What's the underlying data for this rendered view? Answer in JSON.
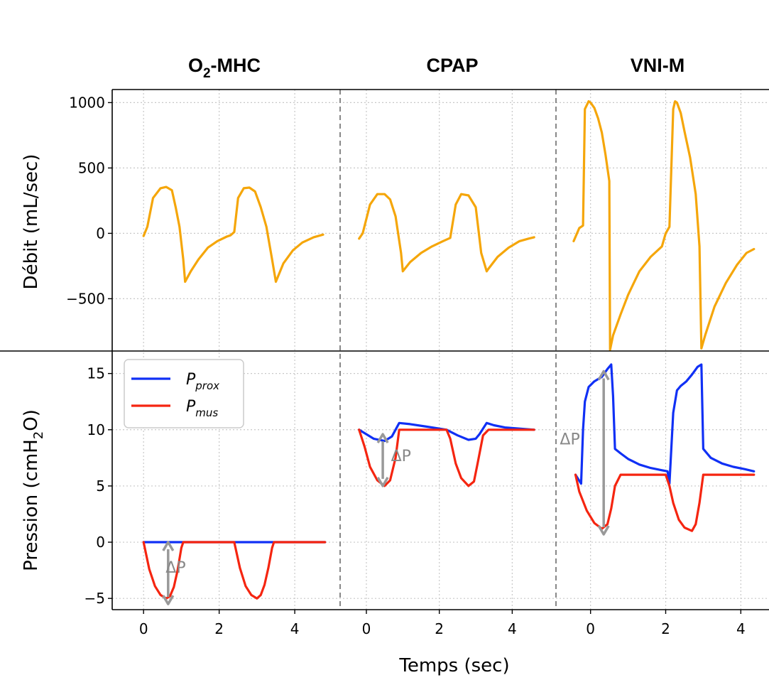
{
  "chart_data": {
    "type": "line",
    "panels": [
      {
        "title_main": "O",
        "title_sub": "2",
        "title_rest": "-MHC"
      },
      {
        "title_main": "CPAP",
        "title_sub": "",
        "title_rest": ""
      },
      {
        "title_main": "VNI-M",
        "title_sub": "",
        "title_rest": ""
      }
    ],
    "xlabel": "Temps (sec)",
    "flow": {
      "ylabel": "Débit (mL/sec)",
      "yticks": [
        -500,
        0,
        500,
        1000
      ],
      "ytick_labels": [
        "−500",
        "0",
        "500",
        "1000"
      ],
      "ylim": [
        -900,
        1100
      ],
      "color": "#F5A60A",
      "series": [
        {
          "x": [
            0.0,
            0.1,
            0.25,
            0.45,
            0.6,
            0.75,
            0.85,
            0.95,
            1.05,
            1.1,
            1.25,
            1.45,
            1.7,
            1.95,
            2.2,
            2.3,
            2.4,
            2.5,
            2.65,
            2.8,
            2.95,
            3.1,
            3.25,
            3.4,
            3.5,
            3.7,
            3.95,
            4.2,
            4.5,
            4.75
          ],
          "y": [
            -20,
            50,
            270,
            345,
            355,
            330,
            200,
            50,
            -200,
            -370,
            -290,
            -200,
            -110,
            -60,
            -25,
            -15,
            10,
            270,
            345,
            350,
            320,
            200,
            50,
            -200,
            -370,
            -230,
            -130,
            -70,
            -30,
            -10
          ]
        },
        {
          "x": [
            -0.2,
            -0.1,
            0.1,
            0.3,
            0.5,
            0.65,
            0.8,
            0.95,
            1.0,
            1.2,
            1.5,
            1.8,
            2.1,
            2.3,
            2.45,
            2.6,
            2.8,
            3.0,
            3.15,
            3.3,
            3.35,
            3.6,
            3.9,
            4.2,
            4.45,
            4.6
          ],
          "y": [
            -40,
            0,
            220,
            300,
            300,
            260,
            130,
            -150,
            -290,
            -220,
            -150,
            -100,
            -60,
            -35,
            220,
            300,
            290,
            200,
            -150,
            -290,
            -270,
            -180,
            -110,
            -60,
            -40,
            -30
          ]
        },
        {
          "x": [
            -0.45,
            -0.3,
            -0.2,
            -0.15,
            -0.05,
            0.0,
            0.1,
            0.2,
            0.3,
            0.4,
            0.5,
            0.52,
            0.6,
            0.8,
            1.0,
            1.3,
            1.6,
            1.9,
            2.0,
            2.1,
            2.2,
            2.25,
            2.3,
            2.4,
            2.5,
            2.65,
            2.8,
            2.9,
            2.95,
            3.05,
            3.3,
            3.6,
            3.9,
            4.15,
            4.35
          ],
          "y": [
            -60,
            40,
            60,
            950,
            1010,
            1000,
            960,
            880,
            770,
            600,
            400,
            -890,
            -780,
            -620,
            -470,
            -290,
            -180,
            -100,
            0,
            50,
            950,
            1010,
            1000,
            920,
            780,
            580,
            300,
            -100,
            -880,
            -780,
            -560,
            -380,
            -240,
            -150,
            -120
          ]
        }
      ]
    },
    "pressure": {
      "ylabel": "Pression (cmH₂O)",
      "ylabel_main": "Pression (cmH",
      "ylabel_sub": "2",
      "ylabel_rest": "O)",
      "yticks": [
        -5,
        0,
        5,
        10,
        15
      ],
      "ytick_labels": [
        "−5",
        "0",
        "5",
        "10",
        "15"
      ],
      "ylim": [
        -6,
        17
      ],
      "legend": [
        {
          "name_main": "P",
          "name_sub": "prox",
          "color": "#1030F5"
        },
        {
          "name_main": "P",
          "name_sub": "mus",
          "color": "#F52510"
        }
      ],
      "annotation": "ΔP",
      "panels": [
        {
          "prox": {
            "x": [
              0.0,
              4.8
            ],
            "y": [
              0,
              0
            ]
          },
          "mus": {
            "x": [
              0.0,
              0.15,
              0.3,
              0.45,
              0.6,
              0.7,
              0.8,
              0.9,
              1.0,
              1.05,
              1.2,
              2.4,
              2.55,
              2.7,
              2.85,
              3.0,
              3.1,
              3.2,
              3.3,
              3.4,
              3.45,
              4.8
            ],
            "y": [
              0,
              -2.4,
              -3.9,
              -4.7,
              -5.0,
              -4.8,
              -4.0,
              -2.5,
              -0.5,
              0,
              0,
              0,
              -2.3,
              -3.9,
              -4.7,
              -5.0,
              -4.7,
              -3.8,
              -2.3,
              -0.5,
              0,
              0
            ]
          },
          "arrow": {
            "x": 0.65,
            "y_from": 0,
            "y_to": -5.5
          },
          "label": {
            "x": 0.85,
            "y": -2.7
          }
        },
        {
          "prox": {
            "x": [
              -0.2,
              0.0,
              0.2,
              0.5,
              0.7,
              0.9,
              1.2,
              1.6,
              2.0,
              2.2,
              2.5,
              2.8,
              3.0,
              3.1,
              3.3,
              3.5,
              3.8,
              4.2,
              4.6
            ],
            "y": [
              10,
              9.6,
              9.2,
              9.0,
              9.4,
              10.6,
              10.5,
              10.3,
              10.1,
              10.0,
              9.5,
              9.1,
              9.2,
              9.6,
              10.6,
              10.4,
              10.2,
              10.1,
              10.0
            ]
          },
          "mus": {
            "x": [
              -0.2,
              -0.05,
              0.1,
              0.3,
              0.5,
              0.65,
              0.8,
              0.9,
              1.2,
              2.2,
              2.3,
              2.45,
              2.6,
              2.8,
              2.95,
              3.05,
              3.2,
              3.35,
              4.6
            ],
            "y": [
              10,
              8.5,
              6.7,
              5.5,
              5.0,
              5.5,
              7.5,
              10,
              10,
              10,
              9.2,
              7.0,
              5.7,
              5.0,
              5.4,
              7.0,
              9.5,
              10,
              10
            ]
          },
          "arrow": {
            "x": 0.45,
            "y_from": 9.6,
            "y_to": 5.0
          },
          "label": {
            "x": 0.95,
            "y": 7.2
          }
        },
        {
          "prox": {
            "x": [
              -0.4,
              -0.25,
              -0.2,
              -0.15,
              -0.05,
              0.1,
              0.3,
              0.45,
              0.55,
              0.6,
              0.65,
              0.8,
              1.0,
              1.3,
              1.6,
              1.9,
              2.05,
              2.1,
              2.2,
              2.3,
              2.4,
              2.55,
              2.7,
              2.85,
              2.95,
              3.0,
              3.2,
              3.5,
              3.8,
              4.1,
              4.35
            ],
            "y": [
              6,
              5.2,
              10,
              12.5,
              13.8,
              14.3,
              14.7,
              15.4,
              15.8,
              13,
              8.3,
              7.9,
              7.4,
              6.9,
              6.6,
              6.4,
              6.3,
              5.2,
              11.5,
              13.5,
              13.9,
              14.3,
              14.9,
              15.6,
              15.8,
              8.3,
              7.5,
              7.0,
              6.7,
              6.5,
              6.3
            ]
          },
          "mus": {
            "x": [
              -0.4,
              -0.3,
              -0.1,
              0.1,
              0.3,
              0.45,
              0.55,
              0.65,
              0.8,
              1.0,
              2.0,
              2.1,
              2.2,
              2.35,
              2.5,
              2.7,
              2.8,
              2.9,
              3.0,
              3.2,
              4.35
            ],
            "y": [
              6,
              4.5,
              2.8,
              1.7,
              1.2,
              1.6,
              3.0,
              5.0,
              6.0,
              6.0,
              6.0,
              5.0,
              3.5,
              2.0,
              1.3,
              1.0,
              1.6,
              3.5,
              6.0,
              6.0,
              6.0
            ]
          },
          "arrow": {
            "x": 0.35,
            "y_from": 15.2,
            "y_to": 0.7
          },
          "label": {
            "x": -0.55,
            "y": 8.7
          }
        }
      ]
    },
    "xticks": [
      0,
      2,
      4
    ],
    "xtick_labels": [
      "0",
      "2",
      "4"
    ],
    "x_ranges": [
      [
        -0.83,
        5.2
      ],
      [
        -0.72,
        5.2
      ],
      [
        -0.92,
        4.75
      ]
    ],
    "grid": true
  }
}
